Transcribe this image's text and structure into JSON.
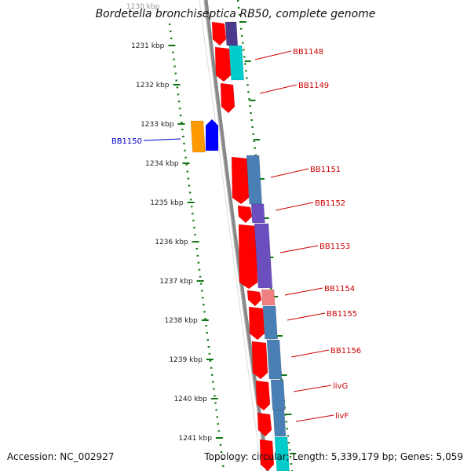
{
  "title": "Bordetella bronchiseptica RB50, complete genome",
  "footer": {
    "accession": "Accession: NC_002927",
    "topology": "Topology: circular; Length: 5,339,179 bp; Genes: 5,059"
  },
  "ticks": [
    "1230 kbp",
    "1231 kbp",
    "1232 kbp",
    "1233 kbp",
    "1234 kbp",
    "1235 kbp",
    "1236 kbp",
    "1237 kbp",
    "1238 kbp",
    "1239 kbp",
    "1240 kbp",
    "1241 kbp"
  ],
  "gene_labels": [
    {
      "name": "BB1148",
      "color": "#cc0000"
    },
    {
      "name": "BB1149",
      "color": "#cc0000"
    },
    {
      "name": "BB1150",
      "color": "#0000cc"
    },
    {
      "name": "BB1151",
      "color": "#cc0000"
    },
    {
      "name": "BB1152",
      "color": "#cc0000"
    },
    {
      "name": "BB1153",
      "color": "#cc0000"
    },
    {
      "name": "BB1154",
      "color": "#cc0000"
    },
    {
      "name": "BB1155",
      "color": "#cc0000"
    },
    {
      "name": "BB1156",
      "color": "#cc0000"
    },
    {
      "name": "livG",
      "color": "#cc0000"
    },
    {
      "name": "livF",
      "color": "#cc0000"
    }
  ],
  "colors": {
    "backbone": "#888888",
    "cds_red": "#ff0000",
    "cds_blue": "#0000ff",
    "cds_orange": "#ff9900",
    "ruler": "#117711",
    "cog_steel": "#4a7fb5",
    "cog_purple": "#6b4fbf",
    "cog_indigo": "#4b3a8c",
    "cog_cyan": "#00cccc",
    "cog_pink": "#f08080"
  }
}
